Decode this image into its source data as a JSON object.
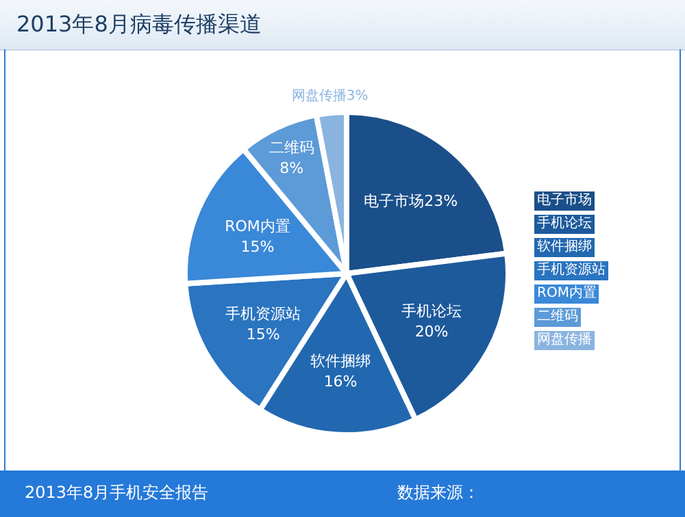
{
  "chart_data": {
    "type": "pie",
    "title": "2013年8月病毒传播渠道",
    "categories": [
      "电子市场",
      "手机论坛",
      "软件捆绑",
      "手机资源站",
      "ROM内置",
      "二维码",
      "网盘传播"
    ],
    "values": [
      23,
      20,
      16,
      15,
      15,
      8,
      3
    ],
    "value_labels": [
      "23%",
      "20%",
      "16%",
      "15%",
      "15%",
      "8%",
      "3%"
    ],
    "colors": [
      "#1a4f8a",
      "#1d5a9c",
      "#2268b0",
      "#2a74c0",
      "#3a88d8",
      "#5c9ad8",
      "#8ab4e0"
    ],
    "legend": "right",
    "annotations": [
      "2013年8月手机安全报告",
      "数据来源："
    ]
  }
}
